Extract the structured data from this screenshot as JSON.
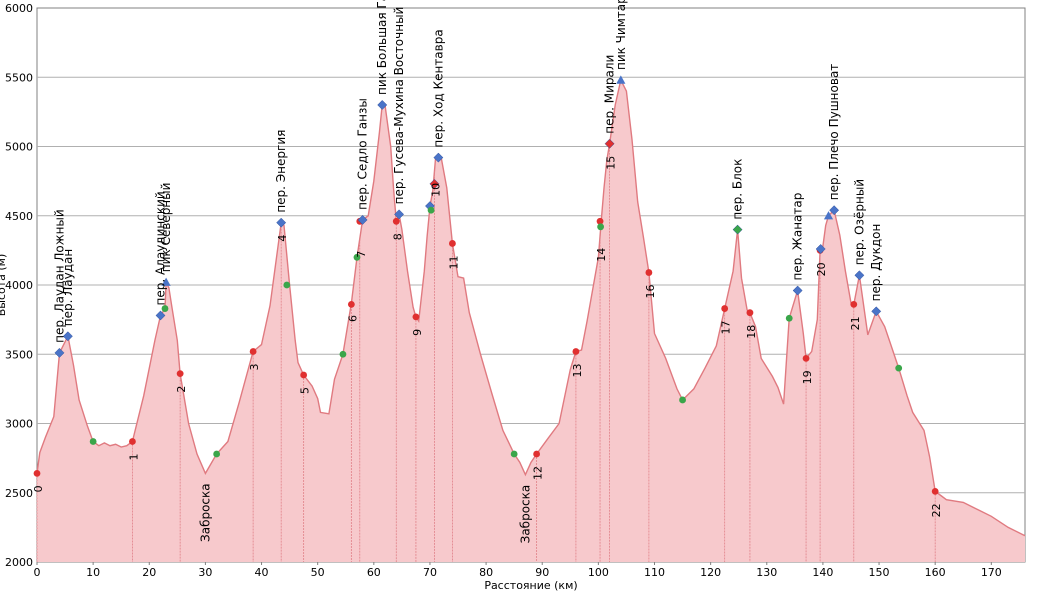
{
  "chart_data": {
    "type": "area",
    "xlabel": "Расстояние (км)",
    "ylabel": "Высота (м)",
    "xlim": [
      0,
      176
    ],
    "ylim": [
      2000,
      6000
    ],
    "x_ticks": [
      0,
      10,
      20,
      30,
      40,
      50,
      60,
      70,
      80,
      90,
      100,
      110,
      120,
      130,
      140,
      150,
      160,
      170
    ],
    "y_ticks": [
      2000,
      2500,
      3000,
      3500,
      4000,
      4500,
      5000,
      5500,
      6000
    ],
    "grid": "horizontal",
    "colors": {
      "fill": "#f7c9cc",
      "line": "#e07a80",
      "red_marker": "#e03030",
      "green_marker": "#3aa64a",
      "blue_marker": "#4a74c8",
      "grid": "#b0b0b0"
    },
    "profile": [
      [
        0,
        2640
      ],
      [
        0.5,
        2790
      ],
      [
        1.5,
        2900
      ],
      [
        3,
        3050
      ],
      [
        4,
        3510
      ],
      [
        5.5,
        3630
      ],
      [
        6.5,
        3420
      ],
      [
        7.5,
        3170
      ],
      [
        9,
        2980
      ],
      [
        10,
        2870
      ],
      [
        11,
        2840
      ],
      [
        12,
        2860
      ],
      [
        13,
        2840
      ],
      [
        14,
        2850
      ],
      [
        15,
        2830
      ],
      [
        16,
        2840
      ],
      [
        17,
        2870
      ],
      [
        19,
        3200
      ],
      [
        21,
        3600
      ],
      [
        22,
        3780
      ],
      [
        22.8,
        3830
      ],
      [
        23,
        4020
      ],
      [
        23.5,
        3980
      ],
      [
        24,
        3850
      ],
      [
        25,
        3600
      ],
      [
        25.5,
        3360
      ],
      [
        27,
        3000
      ],
      [
        28.5,
        2780
      ],
      [
        30,
        2640
      ],
      [
        32,
        2780
      ],
      [
        34,
        2870
      ],
      [
        36,
        3150
      ],
      [
        38.5,
        3520
      ],
      [
        40,
        3570
      ],
      [
        41.5,
        3850
      ],
      [
        43.5,
        4450
      ],
      [
        44,
        4430
      ],
      [
        45,
        4000
      ],
      [
        46,
        3600
      ],
      [
        46.5,
        3440
      ],
      [
        47.5,
        3350
      ],
      [
        49,
        3270
      ],
      [
        50,
        3180
      ],
      [
        50.5,
        3080
      ],
      [
        52,
        3070
      ],
      [
        53,
        3320
      ],
      [
        54.5,
        3500
      ],
      [
        56,
        3870
      ],
      [
        57,
        4200
      ],
      [
        58,
        4470
      ],
      [
        59,
        4500
      ],
      [
        60,
        4750
      ],
      [
        61,
        5100
      ],
      [
        61.5,
        5300
      ],
      [
        62,
        5300
      ],
      [
        63,
        5000
      ],
      [
        63.5,
        4700
      ],
      [
        64,
        4460
      ],
      [
        64.5,
        4510
      ],
      [
        65,
        4400
      ],
      [
        66,
        4100
      ],
      [
        67,
        3840
      ],
      [
        67.5,
        3770
      ],
      [
        68,
        3740
      ],
      [
        69,
        4100
      ],
      [
        69.5,
        4350
      ],
      [
        70,
        4570
      ],
      [
        70.5,
        4680
      ],
      [
        71,
        4920
      ],
      [
        72,
        4920
      ],
      [
        73,
        4700
      ],
      [
        74,
        4300
      ],
      [
        75,
        4060
      ],
      [
        76,
        4050
      ],
      [
        77,
        3800
      ],
      [
        79,
        3500
      ],
      [
        81,
        3220
      ],
      [
        83,
        2950
      ],
      [
        85,
        2780
      ],
      [
        86,
        2720
      ],
      [
        87,
        2630
      ],
      [
        88,
        2720
      ],
      [
        89,
        2780
      ],
      [
        91,
        2890
      ],
      [
        93,
        3000
      ],
      [
        95,
        3390
      ],
      [
        96,
        3520
      ],
      [
        97,
        3530
      ],
      [
        98,
        3740
      ],
      [
        100,
        4200
      ],
      [
        100.5,
        4460
      ],
      [
        101,
        4700
      ],
      [
        101.5,
        4900
      ],
      [
        102,
        5020
      ],
      [
        103,
        5300
      ],
      [
        104,
        5480
      ],
      [
        105,
        5400
      ],
      [
        106,
        5050
      ],
      [
        107,
        4600
      ],
      [
        108,
        4350
      ],
      [
        109,
        4090
      ],
      [
        110,
        3650
      ],
      [
        112,
        3470
      ],
      [
        114,
        3250
      ],
      [
        115,
        3170
      ],
      [
        117,
        3250
      ],
      [
        119,
        3400
      ],
      [
        121,
        3560
      ],
      [
        122.5,
        3830
      ],
      [
        124,
        4100
      ],
      [
        124.8,
        4400
      ],
      [
        125.5,
        4050
      ],
      [
        126.5,
        3820
      ],
      [
        127,
        3800
      ],
      [
        128,
        3700
      ],
      [
        129,
        3470
      ],
      [
        131,
        3340
      ],
      [
        132,
        3260
      ],
      [
        133,
        3140
      ],
      [
        134,
        3760
      ],
      [
        135.5,
        3960
      ],
      [
        136.5,
        3650
      ],
      [
        137,
        3470
      ],
      [
        138,
        3520
      ],
      [
        139,
        3750
      ],
      [
        139.5,
        4250
      ],
      [
        140,
        4280
      ],
      [
        140.5,
        4430
      ],
      [
        141,
        4500
      ],
      [
        142,
        4540
      ],
      [
        143,
        4360
      ],
      [
        144,
        4100
      ],
      [
        145,
        3870
      ],
      [
        145.5,
        3860
      ],
      [
        146.5,
        4070
      ],
      [
        148,
        3640
      ],
      [
        149.5,
        3810
      ],
      [
        151,
        3700
      ],
      [
        153.5,
        3400
      ],
      [
        155,
        3200
      ],
      [
        156,
        3080
      ],
      [
        158,
        2950
      ],
      [
        159,
        2760
      ],
      [
        160,
        2510
      ],
      [
        161,
        2480
      ],
      [
        162,
        2450
      ],
      [
        165,
        2430
      ],
      [
        168,
        2370
      ],
      [
        170,
        2330
      ],
      [
        173,
        2250
      ],
      [
        176,
        2190
      ]
    ],
    "markers": [
      {
        "x": 4,
        "y": 3510,
        "shape": "diamond",
        "color": "blue"
      },
      {
        "x": 5.5,
        "y": 3630,
        "shape": "diamond",
        "color": "blue"
      },
      {
        "x": 10,
        "y": 2870,
        "shape": "circle",
        "color": "green"
      },
      {
        "x": 17,
        "y": 2870,
        "shape": "circle",
        "color": "red"
      },
      {
        "x": 22,
        "y": 3780,
        "shape": "diamond",
        "color": "blue"
      },
      {
        "x": 22.8,
        "y": 3830,
        "shape": "circle",
        "color": "green"
      },
      {
        "x": 23,
        "y": 4020,
        "shape": "triangle",
        "color": "blue"
      },
      {
        "x": 25.5,
        "y": 3360,
        "shape": "circle",
        "color": "red"
      },
      {
        "x": 32,
        "y": 2780,
        "shape": "circle",
        "color": "green"
      },
      {
        "x": 38.5,
        "y": 3520,
        "shape": "circle",
        "color": "red"
      },
      {
        "x": 43.5,
        "y": 4450,
        "shape": "diamond",
        "color": "blue"
      },
      {
        "x": 44.5,
        "y": 4000,
        "shape": "circle",
        "color": "green"
      },
      {
        "x": 47.5,
        "y": 3350,
        "shape": "circle",
        "color": "red"
      },
      {
        "x": 54.5,
        "y": 3500,
        "shape": "circle",
        "color": "green"
      },
      {
        "x": 56,
        "y": 3860,
        "shape": "circle",
        "color": "red"
      },
      {
        "x": 57,
        "y": 4200,
        "shape": "circle",
        "color": "green"
      },
      {
        "x": 57.5,
        "y": 4460,
        "shape": "circle",
        "color": "red"
      },
      {
        "x": 58,
        "y": 4470,
        "shape": "diamond",
        "color": "blue"
      },
      {
        "x": 61.5,
        "y": 5300,
        "shape": "diamond",
        "color": "blue"
      },
      {
        "x": 64,
        "y": 4460,
        "shape": "circle",
        "color": "red"
      },
      {
        "x": 64.5,
        "y": 4510,
        "shape": "diamond",
        "color": "blue"
      },
      {
        "x": 67.5,
        "y": 3770,
        "shape": "circle",
        "color": "red"
      },
      {
        "x": 70,
        "y": 4570,
        "shape": "diamond",
        "color": "blue"
      },
      {
        "x": 70.2,
        "y": 4540,
        "shape": "circle",
        "color": "green"
      },
      {
        "x": 70.8,
        "y": 4730,
        "shape": "diamond",
        "color": "red"
      },
      {
        "x": 71.5,
        "y": 4920,
        "shape": "diamond",
        "color": "blue"
      },
      {
        "x": 74,
        "y": 4300,
        "shape": "circle",
        "color": "red"
      },
      {
        "x": 85,
        "y": 2780,
        "shape": "circle",
        "color": "green"
      },
      {
        "x": 89,
        "y": 2780,
        "shape": "circle",
        "color": "red"
      },
      {
        "x": 96,
        "y": 3520,
        "shape": "circle",
        "color": "red"
      },
      {
        "x": 100.3,
        "y": 4460,
        "shape": "circle",
        "color": "red"
      },
      {
        "x": 100.4,
        "y": 4420,
        "shape": "circle",
        "color": "green"
      },
      {
        "x": 102,
        "y": 5020,
        "shape": "diamond",
        "color": "red"
      },
      {
        "x": 104,
        "y": 5480,
        "shape": "triangle",
        "color": "blue"
      },
      {
        "x": 109,
        "y": 4090,
        "shape": "circle",
        "color": "red"
      },
      {
        "x": 115,
        "y": 3170,
        "shape": "circle",
        "color": "green"
      },
      {
        "x": 122.5,
        "y": 3830,
        "shape": "circle",
        "color": "red"
      },
      {
        "x": 124.8,
        "y": 4400,
        "shape": "diamond",
        "color": "green"
      },
      {
        "x": 127,
        "y": 3800,
        "shape": "circle",
        "color": "red"
      },
      {
        "x": 134,
        "y": 3760,
        "shape": "circle",
        "color": "green"
      },
      {
        "x": 135.5,
        "y": 3960,
        "shape": "diamond",
        "color": "blue"
      },
      {
        "x": 137,
        "y": 3470,
        "shape": "circle",
        "color": "red"
      },
      {
        "x": 139.5,
        "y": 4250,
        "shape": "circle",
        "color": "red"
      },
      {
        "x": 139.6,
        "y": 4260,
        "shape": "diamond",
        "color": "blue"
      },
      {
        "x": 141,
        "y": 4500,
        "shape": "triangle",
        "color": "blue"
      },
      {
        "x": 142,
        "y": 4540,
        "shape": "diamond",
        "color": "blue"
      },
      {
        "x": 145.5,
        "y": 3860,
        "shape": "circle",
        "color": "red"
      },
      {
        "x": 146.5,
        "y": 4070,
        "shape": "diamond",
        "color": "blue"
      },
      {
        "x": 149.5,
        "y": 3810,
        "shape": "diamond",
        "color": "blue"
      },
      {
        "x": 153.5,
        "y": 3400,
        "shape": "circle",
        "color": "green"
      },
      {
        "x": 160,
        "y": 2510,
        "shape": "circle",
        "color": "red"
      },
      {
        "x": 0,
        "y": 2640,
        "shape": "circle",
        "color": "red"
      }
    ],
    "day_markers": [
      {
        "label": "0",
        "x": 0
      },
      {
        "label": "1",
        "x": 17
      },
      {
        "label": "2",
        "x": 25.5
      },
      {
        "label": "3",
        "x": 38.5
      },
      {
        "label": "4",
        "x": 43.5
      },
      {
        "label": "5",
        "x": 47.5
      },
      {
        "label": "6",
        "x": 56
      },
      {
        "label": "7",
        "x": 57.5
      },
      {
        "label": "8",
        "x": 64
      },
      {
        "label": "9",
        "x": 67.5
      },
      {
        "label": "10",
        "x": 70.8
      },
      {
        "label": "11",
        "x": 74
      },
      {
        "label": "12",
        "x": 89
      },
      {
        "label": "13",
        "x": 96
      },
      {
        "label": "14",
        "x": 100.3
      },
      {
        "label": "15",
        "x": 102
      },
      {
        "label": "16",
        "x": 109
      },
      {
        "label": "17",
        "x": 122.5
      },
      {
        "label": "18",
        "x": 127
      },
      {
        "label": "19",
        "x": 137
      },
      {
        "label": "20",
        "x": 139.5
      },
      {
        "label": "21",
        "x": 145.5
      },
      {
        "label": "22",
        "x": 160
      }
    ],
    "annotations": [
      {
        "text": "пер. Лаудан Ложный",
        "x": 4,
        "y": 3510
      },
      {
        "text": "пер. Лаудан",
        "x": 5.5,
        "y": 3630
      },
      {
        "text": "пер. Алаудинский",
        "x": 22,
        "y": 3780
      },
      {
        "text": "пик Северный",
        "x": 23,
        "y": 4020
      },
      {
        "text": "Заброска",
        "x": 30,
        "y": 2640
      },
      {
        "text": "пер. Энергия",
        "x": 43.5,
        "y": 4450
      },
      {
        "text": "пер. Седло Ганзы",
        "x": 58,
        "y": 4470
      },
      {
        "text": "пик Большая Ганза",
        "x": 61.5,
        "y": 5300
      },
      {
        "text": "пер. Гусева-Мухина Восточный",
        "x": 64.5,
        "y": 4510
      },
      {
        "text": "пер. Ход Кентавра",
        "x": 71.5,
        "y": 4920
      },
      {
        "text": "Заброска",
        "x": 87,
        "y": 2630
      },
      {
        "text": "пер. Мирали",
        "x": 102,
        "y": 5020
      },
      {
        "text": "пик Чимтарга",
        "x": 104,
        "y": 5480
      },
      {
        "text": "пер. Блок",
        "x": 124.8,
        "y": 4400
      },
      {
        "text": "пер. Жанатар",
        "x": 135.5,
        "y": 3960
      },
      {
        "text": "пер. Плечо Пушноват",
        "x": 142,
        "y": 4540
      },
      {
        "text": "пер. Озёрный",
        "x": 146.5,
        "y": 4070
      },
      {
        "text": "пер. Дукдон",
        "x": 149.5,
        "y": 3810
      }
    ]
  }
}
